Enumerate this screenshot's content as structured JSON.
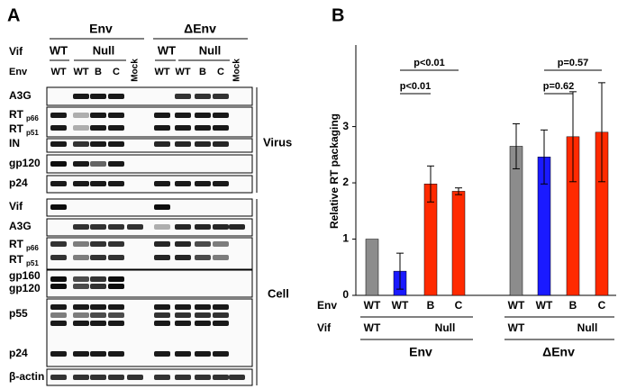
{
  "panel_a": {
    "label": "A",
    "groups": [
      "Env",
      "ΔEnv"
    ],
    "vif_header": "Vif",
    "vif": [
      "WT",
      "Null",
      "WT",
      "Null"
    ],
    "env_header": "Env",
    "env": [
      "WT",
      "WT",
      "B",
      "C",
      "Mock",
      "WT",
      "WT",
      "B",
      "C",
      "Mock"
    ],
    "virus_rows": [
      {
        "labels": [
          "A3G"
        ]
      },
      {
        "labels": [
          "RT",
          "RT"
        ],
        "subs": [
          "p66",
          "p51"
        ]
      },
      {
        "labels": [
          "IN"
        ]
      },
      {
        "labels": [
          "gp120"
        ]
      },
      {
        "labels": [
          "p24"
        ]
      }
    ],
    "cell_rows": [
      {
        "labels": [
          "Vif"
        ]
      },
      {
        "labels": [
          "A3G"
        ]
      },
      {
        "labels": [
          "RT",
          "RT"
        ],
        "subs": [
          "p66",
          "p51"
        ]
      },
      {
        "labels": [
          "gp160",
          "gp120"
        ]
      },
      {
        "labels": [
          "p55",
          "p24"
        ]
      },
      {
        "labels": [
          "β-actin"
        ]
      }
    ],
    "sections": [
      "Virus",
      "Cell"
    ]
  },
  "chart_data": {
    "type": "bar",
    "panel_label": "B",
    "ylabel": "Relative RT packaging",
    "categories": [
      "WT",
      "WT",
      "B",
      "C",
      "WT",
      "WT",
      "B",
      "C"
    ],
    "values": [
      1.0,
      0.43,
      1.98,
      1.85,
      2.65,
      2.46,
      2.82,
      2.9
    ],
    "errors": [
      0,
      0.32,
      0.32,
      0.06,
      0.4,
      0.48,
      0.8,
      0.88
    ],
    "colors": [
      "#8c8c8c",
      "#1a1aff",
      "#ff2a00",
      "#ff2a00",
      "#8c8c8c",
      "#1a1aff",
      "#ff2a00",
      "#ff2a00"
    ],
    "row_labels": [
      "Env",
      "Vif"
    ],
    "groups": [
      {
        "name": "Env",
        "vif": [
          "WT",
          "Null"
        ]
      },
      {
        "name": "ΔEnv",
        "vif": [
          "WT",
          "Null"
        ]
      }
    ],
    "annotations": [
      "p<0.01",
      "p<0.01",
      "p=0.57",
      "p=0.62"
    ],
    "ylim": [
      0,
      4.45
    ],
    "yticks": [
      0,
      1,
      2,
      3
    ]
  }
}
